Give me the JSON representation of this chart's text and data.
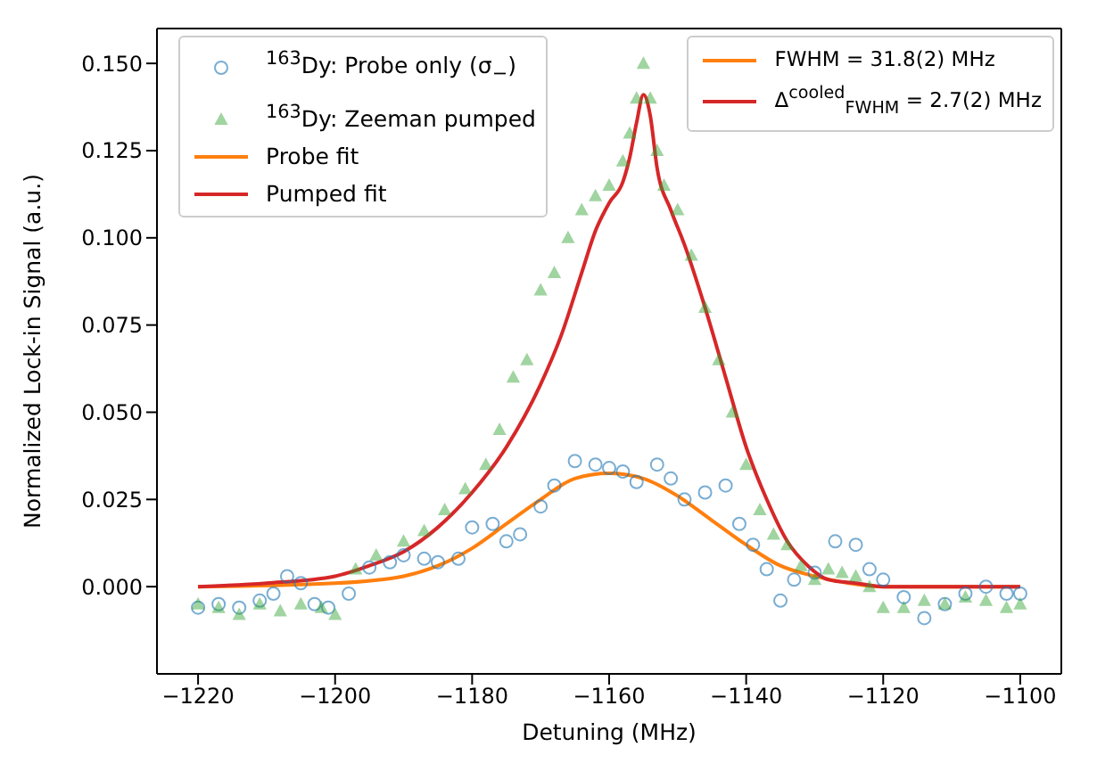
{
  "chart_data": {
    "type": "scatter",
    "xlabel": "Detuning (MHz)",
    "ylabel": "Normalized Lock-in Signal (a.u.)",
    "xlim": [
      -1226,
      -1094
    ],
    "xticks": [
      {
        "value": -1220,
        "label": "−1220"
      },
      {
        "value": -1200,
        "label": "−1200"
      },
      {
        "value": -1180,
        "label": "−1180"
      },
      {
        "value": -1160,
        "label": "−1160"
      },
      {
        "value": -1140,
        "label": "−1140"
      },
      {
        "value": -1120,
        "label": "−1120"
      },
      {
        "value": -1100,
        "label": "−1100"
      }
    ],
    "ylim": [
      -0.025,
      0.16
    ],
    "yticks": [
      {
        "value": 0,
        "label": "0.000"
      },
      0.025,
      {
        "value": 0.05,
        "label": "0.050"
      },
      0.075,
      {
        "value": 0.1,
        "label": "0.100"
      },
      0.125,
      {
        "value": 0.15,
        "label": "0.150"
      }
    ],
    "legend": "top left",
    "grid": false,
    "annotations": [
      "FWHM = 31.8(2) MHz",
      "Δ$^{cooled}$$_{FWHM}$ = 2.7(2) MHz"
    ],
    "series": [
      {
        "name": "$^{163}$Dy: Probe only (σ$_{−}$)",
        "marker": "circle",
        "color": "#1f77b4",
        "x": [
          -1220,
          -1217,
          -1214,
          -1211,
          -1209,
          -1207,
          -1205,
          -1203,
          -1201,
          -1198,
          -1195,
          -1192,
          -1190,
          -1187,
          -1185,
          -1182,
          -1180,
          -1177,
          -1175,
          -1173,
          -1170,
          -1168,
          -1165,
          -1162,
          -1160,
          -1158,
          -1156,
          -1153,
          -1151,
          -1149,
          -1146,
          -1143,
          -1141,
          -1139,
          -1137,
          -1135,
          -1133,
          -1130,
          -1127,
          -1124,
          -1122,
          -1120,
          -1117,
          -1114,
          -1111,
          -1108,
          -1105,
          -1102,
          -1100
        ],
        "values": [
          -0.006,
          -0.005,
          -0.006,
          -0.004,
          -0.002,
          0.003,
          0.001,
          -0.005,
          -0.006,
          -0.002,
          0.0055,
          0.007,
          0.009,
          0.008,
          0.007,
          0.008,
          0.017,
          0.018,
          0.013,
          0.015,
          0.023,
          0.029,
          0.036,
          0.035,
          0.034,
          0.033,
          0.03,
          0.035,
          0.031,
          0.025,
          0.027,
          0.029,
          0.018,
          0.012,
          0.005,
          -0.004,
          0.002,
          0.004,
          0.013,
          0.012,
          0.005,
          0.002,
          -0.003,
          -0.009,
          -0.005,
          -0.002,
          0.0,
          -0.002,
          -0.002
        ]
      },
      {
        "name": "$^{163}$Dy: Zeeman pumped",
        "marker": "triangle",
        "color": "#2ca02c",
        "x": [
          -1220,
          -1217,
          -1214,
          -1211,
          -1208,
          -1205,
          -1202,
          -1200,
          -1197,
          -1194,
          -1190,
          -1187,
          -1184,
          -1181,
          -1178,
          -1176,
          -1174,
          -1172,
          -1170,
          -1168,
          -1166,
          -1164,
          -1162,
          -1160,
          -1158,
          -1157,
          -1156,
          -1155,
          -1154,
          -1153,
          -1152,
          -1150,
          -1148,
          -1146,
          -1144,
          -1142,
          -1140,
          -1138,
          -1136,
          -1134,
          -1132,
          -1130,
          -1128,
          -1126,
          -1124,
          -1122,
          -1120,
          -1117,
          -1114,
          -1111,
          -1108,
          -1105,
          -1102,
          -1100
        ],
        "values": [
          -0.005,
          -0.006,
          -0.008,
          -0.005,
          -0.007,
          -0.005,
          -0.006,
          -0.008,
          0.005,
          0.009,
          0.013,
          0.016,
          0.022,
          0.028,
          0.035,
          0.045,
          0.06,
          0.065,
          0.085,
          0.09,
          0.1,
          0.108,
          0.112,
          0.115,
          0.122,
          0.13,
          0.14,
          0.15,
          0.14,
          0.125,
          0.115,
          0.108,
          0.095,
          0.08,
          0.065,
          0.05,
          0.035,
          0.022,
          0.015,
          0.012,
          0.006,
          0.002,
          0.005,
          0.004,
          0.003,
          0.0,
          -0.006,
          -0.006,
          -0.004,
          -0.005,
          -0.003,
          -0.004,
          -0.006,
          -0.005
        ]
      },
      {
        "name": "Probe fit",
        "type": "line",
        "color": "#ff7f0e",
        "x": [
          -1220,
          -1200,
          -1190,
          -1185,
          -1180,
          -1175,
          -1170,
          -1165,
          -1160,
          -1155,
          -1150,
          -1145,
          -1140,
          -1135,
          -1130,
          -1125,
          -1120,
          -1100
        ],
        "values": [
          0.0,
          0.001,
          0.003,
          0.006,
          0.011,
          0.018,
          0.025,
          0.031,
          0.0325,
          0.031,
          0.026,
          0.019,
          0.012,
          0.006,
          0.003,
          0.001,
          0.0,
          0.0
        ]
      },
      {
        "name": "Pumped fit",
        "type": "line",
        "color": "#d62728",
        "x": [
          -1220,
          -1210,
          -1200,
          -1195,
          -1190,
          -1185,
          -1180,
          -1175,
          -1170,
          -1167,
          -1164,
          -1162,
          -1160,
          -1158,
          -1157,
          -1156,
          -1155,
          -1154,
          -1153,
          -1151,
          -1149,
          -1146,
          -1143,
          -1140,
          -1137,
          -1134,
          -1131,
          -1128,
          -1124,
          -1120,
          -1100
        ],
        "values": [
          0.0,
          0.001,
          0.003,
          0.006,
          0.01,
          0.017,
          0.027,
          0.04,
          0.058,
          0.072,
          0.09,
          0.102,
          0.11,
          0.116,
          0.123,
          0.133,
          0.141,
          0.135,
          0.12,
          0.108,
          0.098,
          0.08,
          0.06,
          0.04,
          0.025,
          0.013,
          0.006,
          0.002,
          0.001,
          0.0,
          0.0
        ]
      }
    ]
  }
}
